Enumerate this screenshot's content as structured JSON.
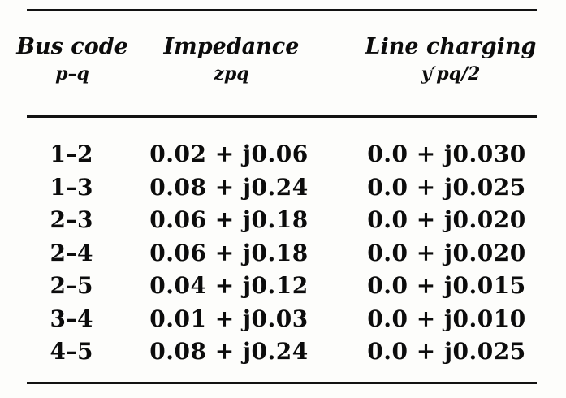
{
  "table": {
    "headers": [
      {
        "line1": "Bus code",
        "line2": "p–q"
      },
      {
        "line1": "Impedance",
        "line2": "zpq"
      },
      {
        "line1": "Line charging",
        "line2": "y′pq/2"
      }
    ],
    "rows": [
      {
        "bus": "1–2",
        "impedance": "0.02 + j0.06",
        "charging": "0.0 + j0.030"
      },
      {
        "bus": "1–3",
        "impedance": "0.08 + j0.24",
        "charging": "0.0 + j0.025"
      },
      {
        "bus": "2–3",
        "impedance": "0.06 + j0.18",
        "charging": "0.0 + j0.020"
      },
      {
        "bus": "2–4",
        "impedance": "0.06 + j0.18",
        "charging": "0.0 + j0.020"
      },
      {
        "bus": "2–5",
        "impedance": "0.04 + j0.12",
        "charging": "0.0 + j0.015"
      },
      {
        "bus": "3–4",
        "impedance": "0.01 + j0.03",
        "charging": "0.0 + j0.010"
      },
      {
        "bus": "4–5",
        "impedance": "0.08 + j0.24",
        "charging": "0.0 + j0.025"
      }
    ]
  }
}
